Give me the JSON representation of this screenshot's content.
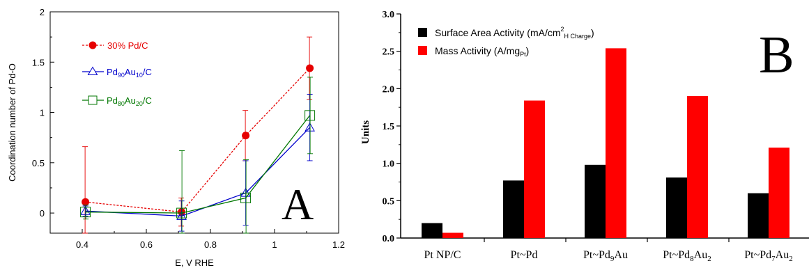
{
  "chart_data": [
    {
      "type": "line",
      "panel_label": "A",
      "xlabel": "E, V RHE",
      "ylabel": "Coordination number of Pd-O",
      "xlim": [
        0.3,
        1.2
      ],
      "ylim": [
        -0.2,
        2
      ],
      "x_ticks": [
        "0.4",
        "0.6",
        "0.8",
        "1",
        "1.2"
      ],
      "y_ticks": [
        "0",
        "0.5",
        "1",
        "1.5",
        "2"
      ],
      "legend_position": "top-left",
      "series": [
        {
          "name": "30% Pd/C",
          "color": "#e60000",
          "marker": "filled-circle",
          "line": "dashed",
          "x": [
            0.41,
            0.71,
            0.91,
            1.11
          ],
          "y": [
            0.11,
            0.01,
            0.77,
            1.44
          ],
          "err": [
            0.55,
            0.14,
            0.25,
            0.31
          ]
        },
        {
          "name_main": "Pd",
          "name_sub1": "90",
          "name_mid": "Au",
          "name_sub2": "10",
          "name_tail": "/C",
          "color": "#0000cc",
          "marker": "open-triangle",
          "line": "solid",
          "x": [
            0.41,
            0.71,
            0.91,
            1.11
          ],
          "y": [
            0.02,
            -0.03,
            0.2,
            0.85
          ],
          "err": [
            0.05,
            0.15,
            0.32,
            0.33
          ]
        },
        {
          "name_main": "Pd",
          "name_sub1": "80",
          "name_mid": "Au",
          "name_sub2": "20",
          "name_tail": "/C",
          "color": "#007700",
          "marker": "open-square",
          "line": "solid",
          "x": [
            0.41,
            0.71,
            0.91,
            1.11
          ],
          "y": [
            0.01,
            0.0,
            0.15,
            0.97
          ],
          "err": [
            0.07,
            0.62,
            0.38,
            0.38
          ]
        }
      ]
    },
    {
      "type": "bar",
      "panel_label": "B",
      "ylabel": "Units",
      "ylim": [
        0,
        3.0
      ],
      "y_ticks": [
        "0.0",
        "0.5",
        "1.0",
        "1.5",
        "2.0",
        "2.5",
        "3.0"
      ],
      "legend_position": "top-left",
      "categories": [
        {
          "main": "Pt NP/C",
          "sub": "",
          "tail": ""
        },
        {
          "main": "Pt~Pd",
          "sub": "",
          "tail": ""
        },
        {
          "main": "Pt~Pd",
          "sub": "9",
          "tail": "Au"
        },
        {
          "main": "Pt~Pd",
          "sub": "8",
          "tail": "Au"
        },
        {
          "main": "Pt~Pd",
          "sub": "7",
          "tail": "Au"
        }
      ],
      "category_trailing_sub": [
        "",
        "",
        "",
        "2",
        "2"
      ],
      "series": [
        {
          "legend_main": "Surface Area Activity (mA/cm",
          "legend_sup": "2",
          "legend_sub": "H Charge",
          "legend_tail": ")",
          "color": "#000000",
          "values": [
            0.2,
            0.77,
            0.98,
            0.81,
            0.6
          ]
        },
        {
          "legend_main": "Mass Activity (A/mg",
          "legend_sub": "Pt",
          "legend_tail": ")",
          "color": "#ff0000",
          "values": [
            0.07,
            1.84,
            2.54,
            1.9,
            1.21
          ]
        }
      ]
    }
  ]
}
